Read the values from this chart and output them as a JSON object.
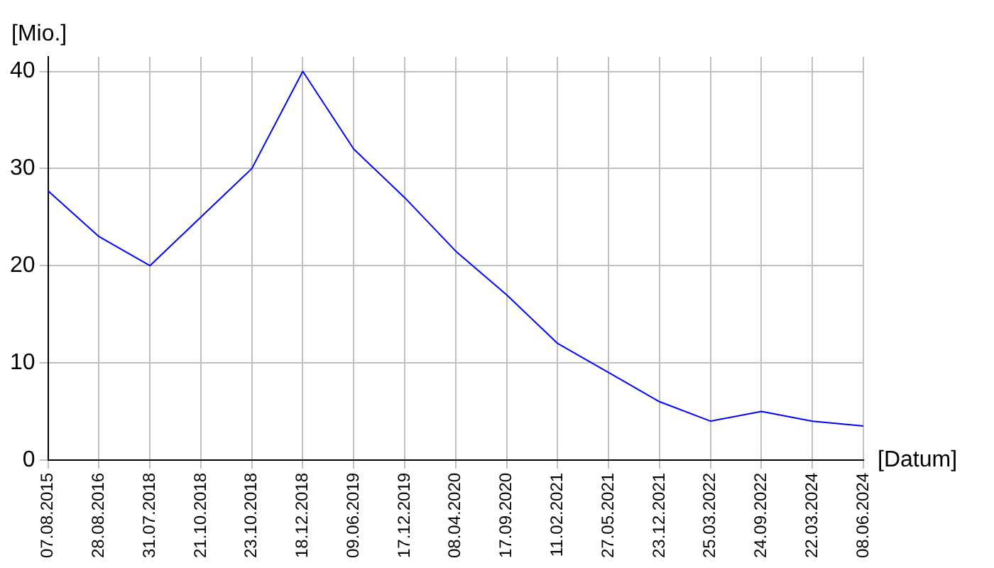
{
  "chart_data": {
    "type": "line",
    "ylabel": "[Mio.]",
    "xlabel": "[Datum]",
    "categories": [
      "07.08.2015",
      "28.08.2016",
      "31.07.2018",
      "21.10.2018",
      "23.10.2018",
      "18.12.2018",
      "09.06.2019",
      "17.12.2019",
      "08.04.2020",
      "17.09.2020",
      "11.02.2021",
      "27.05.2021",
      "23.12.2021",
      "25.03.2022",
      "24.09.2022",
      "22.03.2024",
      "08.06.2024"
    ],
    "series": [
      {
        "color": "#0000ff",
        "values": [
          27.7,
          23,
          20,
          25,
          30,
          40,
          32,
          27,
          21.5,
          17,
          12,
          9,
          6,
          4,
          5,
          4,
          3.5
        ]
      }
    ],
    "ylim": [
      0,
      41.5
    ],
    "yticks": [
      0,
      10,
      20,
      30,
      40
    ],
    "grid": true,
    "legend": false,
    "marker": "none",
    "line_style": "solid"
  }
}
